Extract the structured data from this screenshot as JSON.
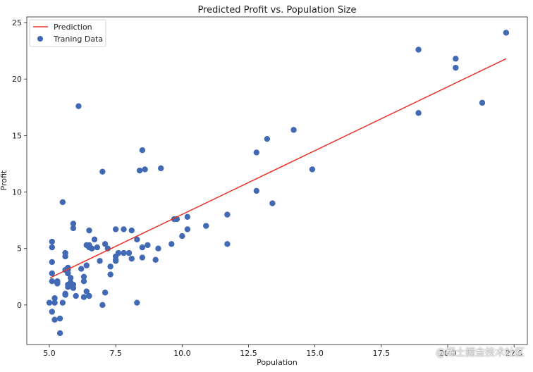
{
  "chart_data": {
    "type": "scatter",
    "title": "Predicted Profit vs. Population Size",
    "xlabel": "Population",
    "ylabel": "Profit",
    "xlim": [
      4.15,
      23.0
    ],
    "ylim": [
      -3.5,
      25.5
    ],
    "xticks": [
      5.0,
      7.5,
      10.0,
      12.5,
      15.0,
      17.5,
      20.0,
      22.5
    ],
    "xtick_labels": [
      "5.0",
      "7.5",
      "10.0",
      "12.5",
      "15.0",
      "17.5",
      "20.0",
      "22.5"
    ],
    "yticks": [
      0,
      5,
      10,
      15,
      20,
      25
    ],
    "ytick_labels": [
      "0",
      "5",
      "10",
      "15",
      "20",
      "25"
    ],
    "grid": false,
    "legend_position": "top-left",
    "series": [
      {
        "name": "Traning Data",
        "kind": "scatter",
        "color": "#4169b4",
        "points": [
          [
            6.1,
            17.6
          ],
          [
            5.5,
            9.1
          ],
          [
            8.5,
            13.7
          ],
          [
            7.0,
            11.8
          ],
          [
            5.9,
            6.8
          ],
          [
            8.4,
            11.9
          ],
          [
            7.5,
            4.3
          ],
          [
            8.6,
            12.0
          ],
          [
            6.5,
            6.6
          ],
          [
            5.1,
            3.8
          ],
          [
            5.7,
            3.3
          ],
          [
            14.2,
            15.5
          ],
          [
            5.7,
            3.1
          ],
          [
            5.1,
            2.8
          ],
          [
            10.2,
            6.7
          ],
          [
            5.5,
            0.2
          ],
          [
            18.9,
            22.6
          ],
          [
            20.3,
            21.8
          ],
          [
            18.9,
            17.0
          ],
          [
            7.1,
            1.1
          ],
          [
            5.7,
            1.8
          ],
          [
            5.1,
            5.6
          ],
          [
            6.5,
            5.3
          ],
          [
            5.3,
            2.0
          ],
          [
            7.8,
            4.6
          ],
          [
            8.1,
            4.1
          ],
          [
            5.8,
            2.4
          ],
          [
            5.9,
            1.8
          ],
          [
            6.5,
            5.1
          ],
          [
            6.4,
            3.5
          ],
          [
            5.1,
            5.1
          ],
          [
            5.6,
            4.6
          ],
          [
            6.4,
            5.3
          ],
          [
            6.8,
            5.1
          ],
          [
            5.8,
            2.0
          ],
          [
            5.6,
            0.9
          ],
          [
            5.2,
            0.6
          ],
          [
            6.3,
            0.7
          ],
          [
            5.1,
            2.1
          ],
          [
            5.2,
            0.2
          ],
          [
            5.4,
            -2.5
          ],
          [
            5.7,
            1.6
          ],
          [
            5.6,
            0.9
          ],
          [
            6.9,
            3.9
          ],
          [
            7.8,
            6.7
          ],
          [
            8.3,
            0.2
          ],
          [
            10.0,
            6.1
          ],
          [
            8.5,
            4.2
          ],
          [
            5.7,
            2.8
          ],
          [
            7.2,
            5.0
          ],
          [
            7.3,
            2.7
          ],
          [
            11.7,
            8.0
          ],
          [
            6.6,
            5.0
          ],
          [
            5.6,
            4.3
          ],
          [
            5.4,
            -1.2
          ],
          [
            13.4,
            9.0
          ],
          [
            12.8,
            13.5
          ],
          [
            9.8,
            7.6
          ],
          [
            9.2,
            12.1
          ],
          [
            10.2,
            7.8
          ],
          [
            13.2,
            14.7
          ],
          [
            11.7,
            5.4
          ],
          [
            7.5,
            6.7
          ],
          [
            5.3,
            2.1
          ],
          [
            8.5,
            5.1
          ],
          [
            6.3,
            2.1
          ],
          [
            7.5,
            3.9
          ],
          [
            8.7,
            5.3
          ],
          [
            6.7,
            5.8
          ],
          [
            9.1,
            5.0
          ],
          [
            5.3,
            1.9
          ],
          [
            7.6,
            4.6
          ],
          [
            5.0,
            0.2
          ],
          [
            5.9,
            7.2
          ],
          [
            6.2,
            3.2
          ],
          [
            8.0,
            4.6
          ],
          [
            7.3,
            3.4
          ],
          [
            9.0,
            4.0
          ],
          [
            7.0,
            0.0
          ],
          [
            5.6,
            1.0
          ],
          [
            5.9,
            1.5
          ],
          [
            7.5,
            4.0
          ],
          [
            6.0,
            0.8
          ],
          [
            6.5,
            0.8
          ],
          [
            6.4,
            1.2
          ],
          [
            5.6,
            3.1
          ],
          [
            5.1,
            -0.6
          ],
          [
            12.8,
            10.1
          ],
          [
            10.9,
            7.0
          ],
          [
            6.3,
            2.5
          ],
          [
            9.6,
            5.4
          ],
          [
            8.1,
            6.6
          ],
          [
            21.3,
            17.9
          ],
          [
            9.7,
            7.6
          ],
          [
            7.1,
            5.4
          ],
          [
            8.3,
            5.8
          ],
          [
            5.2,
            -1.3
          ],
          [
            14.9,
            12.0
          ],
          [
            22.2,
            24.1
          ],
          [
            20.3,
            21.0
          ]
        ]
      },
      {
        "name": "Prediction",
        "kind": "line",
        "color": "#e8332a",
        "x": [
          5.0269,
          22.203
        ],
        "y": [
          2.4,
          21.8
        ]
      }
    ]
  },
  "watermark": "@稀土掘金技术社区"
}
